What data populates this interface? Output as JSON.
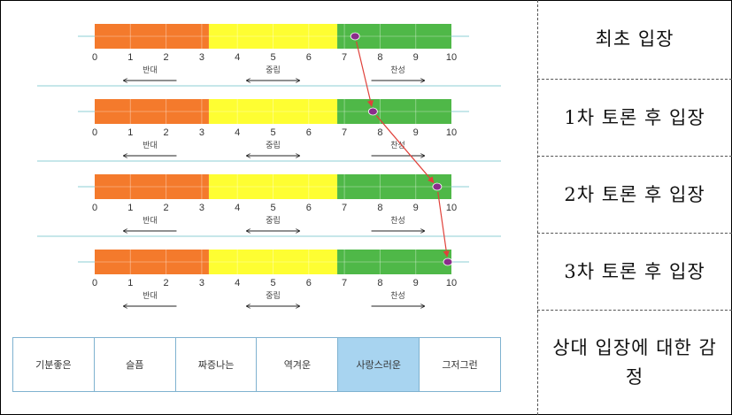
{
  "ticks": [
    "0",
    "1",
    "2",
    "3",
    "4",
    "5",
    "6",
    "7",
    "8",
    "9",
    "10"
  ],
  "zones": {
    "oppose": "반대",
    "neutral": "중립",
    "agree": "찬성"
  },
  "colors": {
    "oppose": "#f47a2c",
    "neutral": "#fefe32",
    "agree": "#4fb848",
    "marker": "#8a2d8a",
    "arrow": "#e0413a",
    "line": "#8ccfd6",
    "selected": "#a8d4f0"
  },
  "positions": [
    {
      "label": "최초 입장",
      "value": 7.3
    },
    {
      "label": "1차 토론 후 입장",
      "value": 7.8
    },
    {
      "label": "2차 토론 후 입장",
      "value": 9.6
    },
    {
      "label": "3차 토론 후 입장",
      "value": 9.9
    }
  ],
  "emotion_header": "상대 입장에 대한 감정",
  "emotions": [
    "기분좋은",
    "슬픔",
    "짜증나는",
    "역겨운",
    "사랑스러운",
    "그저그런"
  ],
  "selected_emotion": "사랑스러운"
}
